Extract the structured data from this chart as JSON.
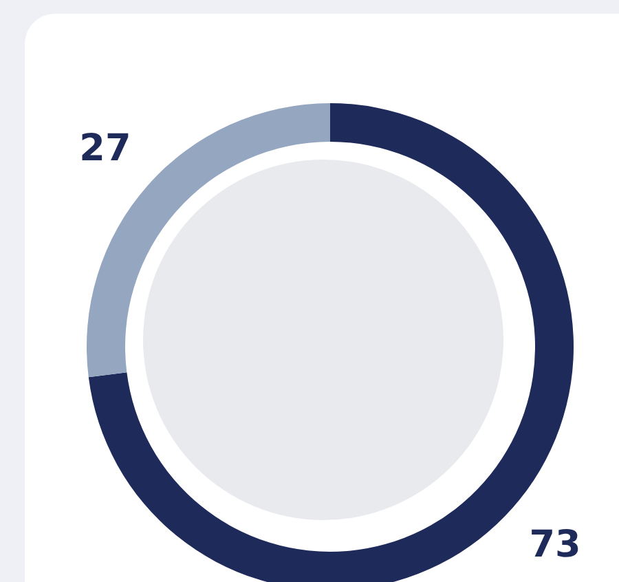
{
  "chart_data": {
    "type": "donut",
    "categories": [
      null,
      null
    ],
    "values": [
      73,
      27
    ],
    "colors": [
      "#1e2a5a",
      "#94a6c0"
    ],
    "data_labels": true
  }
}
